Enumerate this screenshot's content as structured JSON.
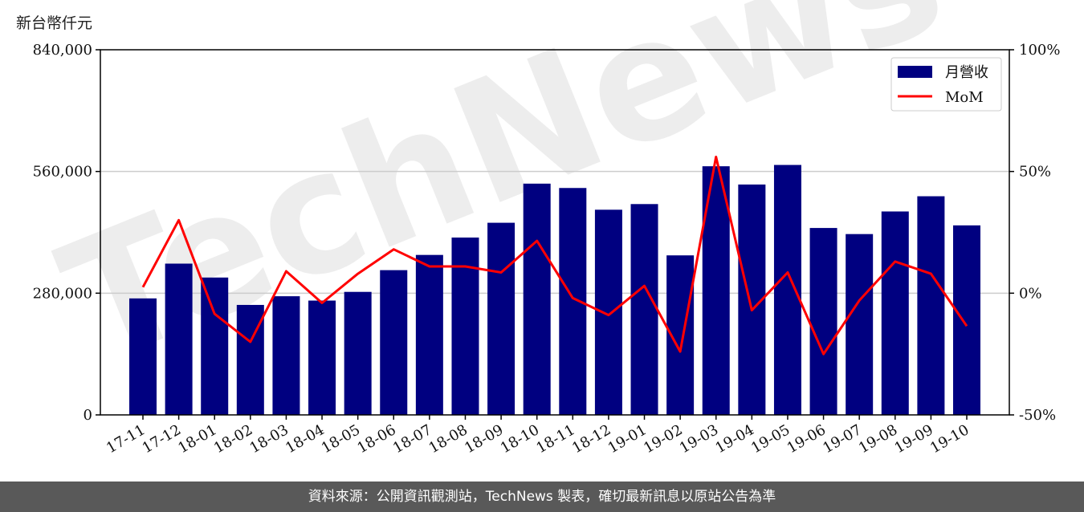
{
  "y_unit_label": "新台幣仟元",
  "footer_text": "資料來源：公開資訊觀測站，TechNews 製表，確切最新訊息以原站公告為準",
  "watermark": "TechNews",
  "colors": {
    "bar": "#000080",
    "line": "#ff0000",
    "grid": "#cccccc",
    "footer_bg": "#595959"
  },
  "chart_data": {
    "type": "bar",
    "categories": [
      "17-11",
      "17-12",
      "18-01",
      "18-02",
      "18-03",
      "18-04",
      "18-05",
      "18-06",
      "18-07",
      "18-08",
      "18-09",
      "18-10",
      "18-11",
      "18-12",
      "19-01",
      "19-02",
      "19-03",
      "19-04",
      "19-05",
      "19-06",
      "19-07",
      "19-08",
      "19-09",
      "19-10"
    ],
    "series": [
      {
        "name": "月營收",
        "type": "bar",
        "axis": "left",
        "values": [
          268000,
          348000,
          316000,
          253000,
          273000,
          263000,
          283000,
          333000,
          368000,
          408000,
          442000,
          532000,
          522000,
          472000,
          485000,
          367000,
          572000,
          530000,
          575000,
          430000,
          416000,
          468000,
          503000,
          436000
        ]
      },
      {
        "name": "MoM",
        "type": "line",
        "axis": "right",
        "values": [
          2.5,
          30,
          -8.5,
          -20,
          9,
          -4,
          8,
          18,
          11,
          11,
          8.5,
          21.5,
          -2,
          -9,
          3,
          -24,
          56,
          -7,
          8.5,
          -25,
          -3,
          13,
          8,
          -13.5
        ]
      }
    ],
    "y_left": {
      "range": [
        0,
        840000
      ],
      "ticks": [
        "0",
        "280,000",
        "560,000",
        "840,000"
      ]
    },
    "y_right": {
      "range": [
        -50,
        100
      ],
      "ticks": [
        "-50%",
        "0%",
        "50%",
        "100%"
      ]
    },
    "grid": "horizontal",
    "legend_position": "top-right"
  }
}
